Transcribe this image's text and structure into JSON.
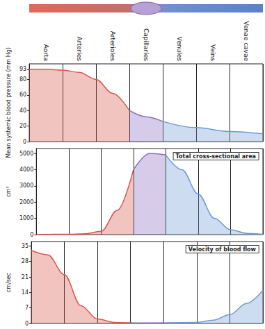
{
  "vessels": [
    "Aorta",
    "Arteries",
    "Arterioles",
    "Capillaries",
    "Venules",
    "Veins",
    "Venae cavae"
  ],
  "chart_data": [
    {
      "type": "line",
      "y_label": "Mean systemic blood pressure (mm Hg)",
      "xlim": [
        0,
        7
      ],
      "xticks": [
        0,
        1,
        2,
        3,
        4,
        5,
        6,
        7
      ],
      "tick_labels": "y",
      "ylim": [
        0,
        100
      ],
      "yticks": [
        0,
        20,
        40,
        60,
        80,
        93
      ],
      "grid": false,
      "series": [
        {
          "color": "#d9574a",
          "x": [
            0,
            0.5,
            1,
            1.5,
            2,
            2.5,
            3
          ],
          "values": [
            93,
            93,
            92,
            89,
            80,
            62,
            40
          ]
        },
        {
          "color": "#8a6bbf",
          "x": [
            3,
            3.5,
            4
          ],
          "values": [
            40,
            32,
            26
          ]
        },
        {
          "color": "#6f9ad8",
          "x": [
            4,
            5,
            6,
            7
          ],
          "values": [
            26,
            18,
            13,
            10
          ]
        }
      ]
    },
    {
      "type": "line",
      "title": "Total cross-sectional area",
      "y_label": "cm²",
      "xlim": [
        0,
        7
      ],
      "xticks": [
        0,
        1,
        2,
        3,
        4,
        5,
        6,
        7
      ],
      "tick_labels": "y",
      "ylim": [
        0,
        5300
      ],
      "yticks": [
        0,
        1000,
        2000,
        3000,
        4000,
        5000
      ],
      "grid": false,
      "series": [
        {
          "color": "#d9574a",
          "x": [
            0,
            1,
            1.5,
            2,
            2.5,
            3
          ],
          "values": [
            5,
            20,
            50,
            200,
            1500,
            4000
          ]
        },
        {
          "color": "#8a6bbf",
          "x": [
            3,
            3.5,
            4
          ],
          "values": [
            4000,
            5000,
            4900
          ]
        },
        {
          "color": "#6f9ad8",
          "x": [
            4,
            4.5,
            5,
            5.5,
            6,
            6.5,
            7
          ],
          "values": [
            4900,
            4000,
            2500,
            1000,
            300,
            80,
            20
          ]
        }
      ]
    },
    {
      "type": "line",
      "title": "Velocity of blood flow",
      "y_label": "cm/sec",
      "xlim": [
        0,
        7
      ],
      "xticks": [
        0,
        1,
        2,
        3,
        4,
        5,
        6,
        7
      ],
      "tick_labels": "y",
      "ylim": [
        0,
        37
      ],
      "yticks": [
        0,
        7,
        14,
        21,
        28,
        35
      ],
      "grid": false,
      "series": [
        {
          "color": "#d9574a",
          "x": [
            0,
            0.5,
            1,
            1.5,
            2,
            2.5,
            3
          ],
          "values": [
            33,
            31,
            22,
            8,
            2,
            0.5,
            0.3
          ]
        },
        {
          "color": "#8a6bbf",
          "x": [
            3,
            3.5,
            4
          ],
          "values": [
            0.3,
            0.2,
            0.3
          ]
        },
        {
          "color": "#6f9ad8",
          "x": [
            4,
            5,
            5.5,
            6,
            6.5,
            7
          ],
          "values": [
            0.3,
            0.5,
            1.5,
            4,
            9,
            15
          ]
        }
      ]
    }
  ]
}
